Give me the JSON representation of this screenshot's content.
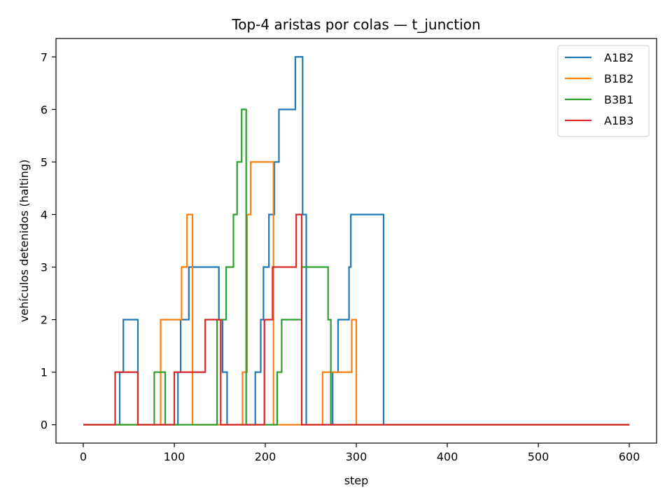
{
  "chart_data": {
    "type": "line",
    "title": "Top-4 aristas por colas — t_junction",
    "xlabel": "step",
    "ylabel": "vehículos detenidos (halting)",
    "xlim": [
      -30,
      630
    ],
    "ylim": [
      -0.35,
      7.35
    ],
    "xticks": [
      0,
      100,
      200,
      300,
      400,
      500,
      600
    ],
    "yticks": [
      0,
      1,
      2,
      3,
      4,
      5,
      6,
      7
    ],
    "grid": false,
    "legend_position": "top-right",
    "series": [
      {
        "name": "A1B2",
        "color": "#1f77b4",
        "points": [
          [
            0,
            0
          ],
          [
            40,
            0
          ],
          [
            40,
            1
          ],
          [
            44,
            1
          ],
          [
            44,
            2
          ],
          [
            60,
            2
          ],
          [
            60,
            0
          ],
          [
            104,
            0
          ],
          [
            104,
            1
          ],
          [
            107,
            1
          ],
          [
            107,
            2
          ],
          [
            116,
            2
          ],
          [
            116,
            3
          ],
          [
            149,
            3
          ],
          [
            149,
            2
          ],
          [
            153,
            2
          ],
          [
            153,
            1
          ],
          [
            158,
            1
          ],
          [
            158,
            0
          ],
          [
            189,
            0
          ],
          [
            189,
            1
          ],
          [
            195,
            1
          ],
          [
            195,
            2
          ],
          [
            198,
            2
          ],
          [
            198,
            3
          ],
          [
            204,
            3
          ],
          [
            204,
            4
          ],
          [
            210,
            4
          ],
          [
            210,
            5
          ],
          [
            215,
            5
          ],
          [
            215,
            6
          ],
          [
            233,
            6
          ],
          [
            233,
            7
          ],
          [
            241,
            7
          ],
          [
            241,
            4
          ],
          [
            245,
            4
          ],
          [
            245,
            0
          ],
          [
            274,
            0
          ],
          [
            274,
            1
          ],
          [
            280,
            1
          ],
          [
            280,
            2
          ],
          [
            292,
            2
          ],
          [
            292,
            3
          ],
          [
            294,
            3
          ],
          [
            294,
            4
          ],
          [
            330,
            4
          ],
          [
            330,
            0
          ],
          [
            600,
            0
          ]
        ]
      },
      {
        "name": "B1B2",
        "color": "#ff7f0e",
        "points": [
          [
            0,
            0
          ],
          [
            85,
            0
          ],
          [
            85,
            2
          ],
          [
            108,
            2
          ],
          [
            108,
            3
          ],
          [
            114,
            3
          ],
          [
            114,
            4
          ],
          [
            120,
            4
          ],
          [
            120,
            0
          ],
          [
            175,
            0
          ],
          [
            175,
            1
          ],
          [
            180,
            1
          ],
          [
            180,
            4
          ],
          [
            184,
            4
          ],
          [
            184,
            5
          ],
          [
            209,
            5
          ],
          [
            209,
            0
          ],
          [
            263,
            0
          ],
          [
            263,
            1
          ],
          [
            295,
            1
          ],
          [
            295,
            2
          ],
          [
            300,
            2
          ],
          [
            300,
            0
          ],
          [
            600,
            0
          ]
        ]
      },
      {
        "name": "B3B1",
        "color": "#2ca02c",
        "points": [
          [
            0,
            0
          ],
          [
            78,
            0
          ],
          [
            78,
            1
          ],
          [
            90,
            1
          ],
          [
            90,
            0
          ],
          [
            147,
            0
          ],
          [
            147,
            2
          ],
          [
            157,
            2
          ],
          [
            157,
            3
          ],
          [
            165,
            3
          ],
          [
            165,
            4
          ],
          [
            169,
            4
          ],
          [
            169,
            5
          ],
          [
            174,
            5
          ],
          [
            174,
            6
          ],
          [
            179,
            6
          ],
          [
            179,
            0
          ],
          [
            213,
            0
          ],
          [
            213,
            1
          ],
          [
            218,
            1
          ],
          [
            218,
            2
          ],
          [
            240,
            2
          ],
          [
            240,
            3
          ],
          [
            269,
            3
          ],
          [
            269,
            2
          ],
          [
            272,
            2
          ],
          [
            272,
            0
          ],
          [
            600,
            0
          ]
        ]
      },
      {
        "name": "A1B3",
        "color": "#d62728",
        "points": [
          [
            0,
            0
          ],
          [
            35,
            0
          ],
          [
            35,
            1
          ],
          [
            60,
            1
          ],
          [
            60,
            0
          ],
          [
            100,
            0
          ],
          [
            100,
            1
          ],
          [
            134,
            1
          ],
          [
            134,
            2
          ],
          [
            151,
            2
          ],
          [
            151,
            0
          ],
          [
            199,
            0
          ],
          [
            199,
            2
          ],
          [
            208,
            2
          ],
          [
            208,
            3
          ],
          [
            234,
            3
          ],
          [
            234,
            4
          ],
          [
            240,
            4
          ],
          [
            240,
            0
          ],
          [
            600,
            0
          ]
        ]
      }
    ]
  }
}
